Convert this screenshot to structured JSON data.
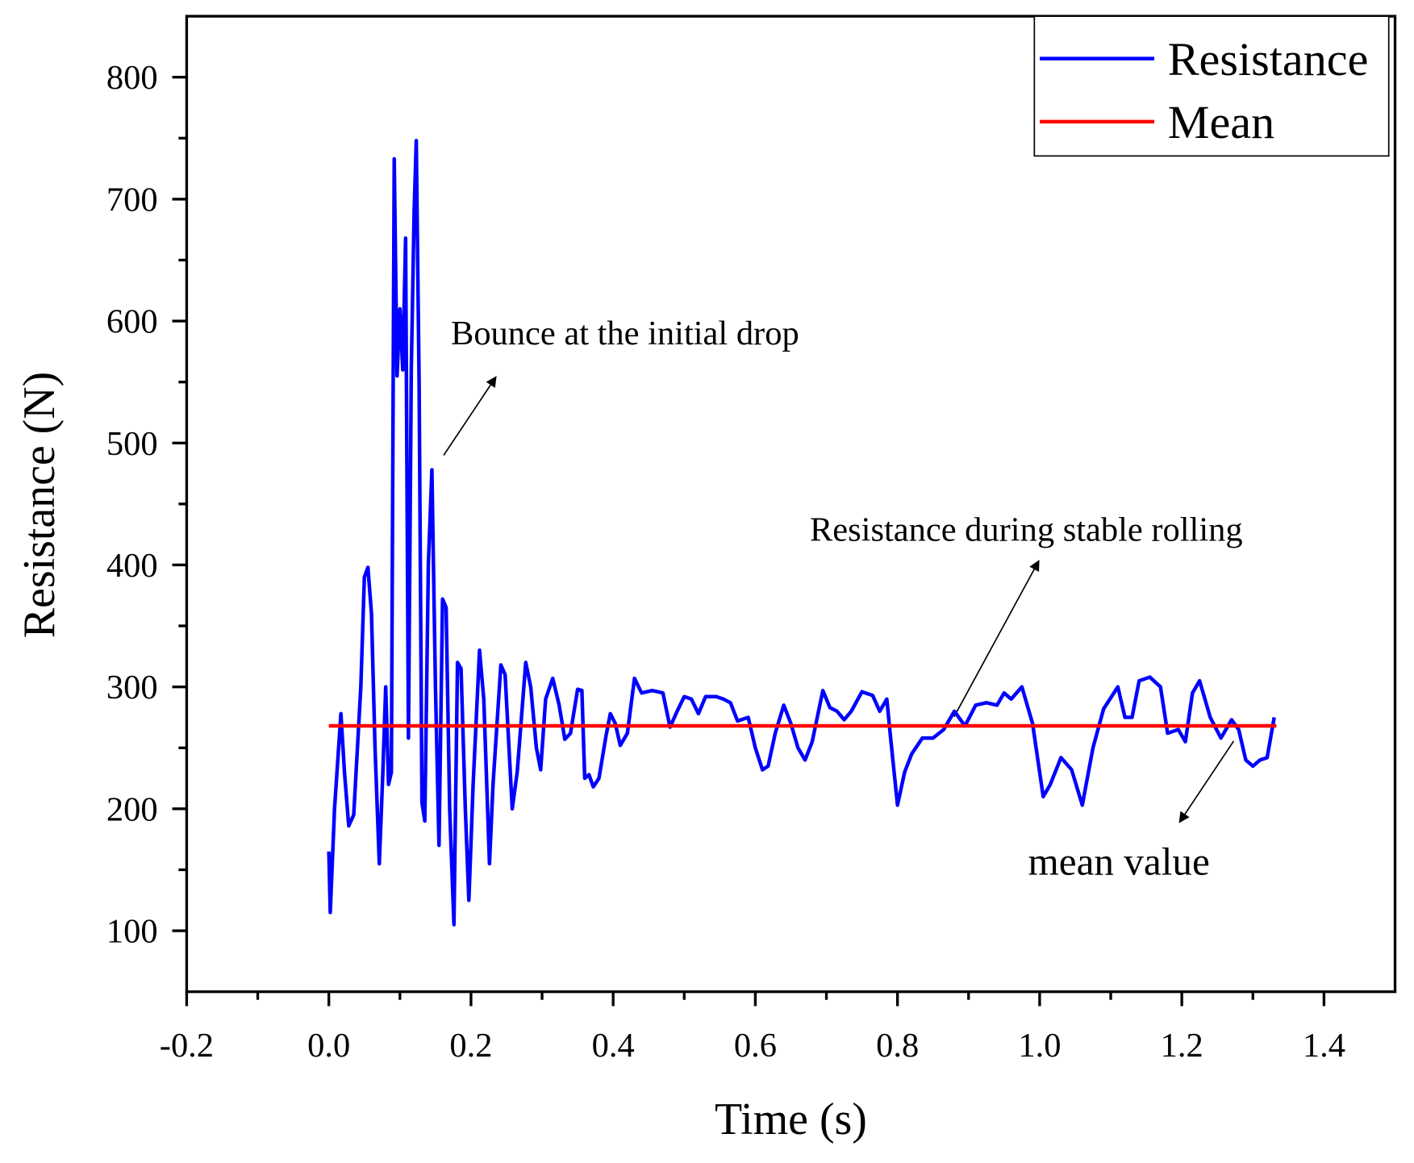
{
  "chart_data": {
    "type": "line",
    "xlabel": "Time (s)",
    "ylabel": "Resistance (N)",
    "xlim": [
      -0.2,
      1.5
    ],
    "ylim": [
      50,
      850
    ],
    "xticks": [
      -0.2,
      {
        "value": 0,
        "label": "0.0"
      },
      0.2,
      0.4,
      0.6,
      0.8,
      {
        "value": 1,
        "label": "1.0"
      },
      1.2,
      1.4
    ],
    "yticks": [
      100,
      200,
      300,
      400,
      500,
      600,
      700,
      800
    ],
    "legend": "upper right",
    "annotations": [
      "Bounce at the initial drop",
      "Resistance during stable rolling",
      "mean value"
    ],
    "series": [
      {
        "name": "Resistance",
        "color": "#0000ff",
        "x": [
          0.0,
          0.002,
          0.008,
          0.017,
          0.022,
          0.028,
          0.035,
          0.045,
          0.05,
          0.055,
          0.06,
          0.065,
          0.071,
          0.076,
          0.08,
          0.084,
          0.088,
          0.092,
          0.096,
          0.1,
          0.104,
          0.108,
          0.112,
          0.116,
          0.12,
          0.123,
          0.127,
          0.131,
          0.135,
          0.14,
          0.145,
          0.15,
          0.155,
          0.16,
          0.165,
          0.17,
          0.176,
          0.181,
          0.186,
          0.192,
          0.197,
          0.203,
          0.212,
          0.218,
          0.226,
          0.231,
          0.242,
          0.248,
          0.258,
          0.265,
          0.277,
          0.284,
          0.292,
          0.298,
          0.305,
          0.315,
          0.324,
          0.332,
          0.34,
          0.35,
          0.356,
          0.36,
          0.366,
          0.372,
          0.38,
          0.39,
          0.396,
          0.403,
          0.41,
          0.42,
          0.43,
          0.44,
          0.455,
          0.47,
          0.48,
          0.49,
          0.5,
          0.51,
          0.52,
          0.53,
          0.545,
          0.555,
          0.565,
          0.575,
          0.59,
          0.6,
          0.61,
          0.618,
          0.628,
          0.64,
          0.65,
          0.66,
          0.67,
          0.68,
          0.695,
          0.705,
          0.715,
          0.725,
          0.735,
          0.75,
          0.765,
          0.775,
          0.785,
          0.79,
          0.8,
          0.81,
          0.82,
          0.835,
          0.85,
          0.865,
          0.88,
          0.895,
          0.91,
          0.925,
          0.94,
          0.95,
          0.96,
          0.975,
          0.99,
          1.0,
          1.005,
          1.015,
          1.03,
          1.045,
          1.06,
          1.075,
          1.09,
          1.11,
          1.12,
          1.13,
          1.14,
          1.155,
          1.17,
          1.18,
          1.195,
          1.205,
          1.215,
          1.225,
          1.24,
          1.255,
          1.27,
          1.28,
          1.29,
          1.3,
          1.31,
          1.32,
          1.33
        ],
        "values": [
          165,
          115,
          200,
          278,
          230,
          186,
          195,
          300,
          390,
          398,
          360,
          250,
          155,
          230,
          300,
          220,
          230,
          733,
          555,
          610,
          560,
          668,
          258,
          560,
          690,
          748,
          550,
          205,
          190,
          400,
          478,
          300,
          170,
          372,
          365,
          200,
          105,
          320,
          315,
          200,
          125,
          220,
          330,
          290,
          155,
          220,
          318,
          310,
          200,
          230,
          320,
          300,
          250,
          232,
          290,
          307,
          285,
          257,
          262,
          298,
          297,
          225,
          228,
          218,
          225,
          260,
          278,
          270,
          252,
          262,
          307,
          295,
          297,
          295,
          267,
          280,
          292,
          290,
          278,
          292,
          292,
          290,
          287,
          272,
          275,
          250,
          232,
          235,
          262,
          285,
          270,
          250,
          240,
          255,
          297,
          283,
          280,
          273,
          280,
          296,
          293,
          280,
          290,
          260,
          203,
          230,
          245,
          258,
          258,
          265,
          280,
          268,
          285,
          287,
          285,
          295,
          290,
          300,
          270,
          230,
          210,
          220,
          242,
          232,
          203,
          250,
          282,
          300,
          275,
          275,
          305,
          308,
          300,
          262,
          265,
          255,
          295,
          305,
          275,
          258,
          273,
          265,
          240,
          235,
          240,
          242,
          275
        ]
      },
      {
        "name": "Mean",
        "color": "#ff0000",
        "x": [
          0,
          1.333
        ],
        "values": [
          268,
          268
        ]
      }
    ]
  }
}
